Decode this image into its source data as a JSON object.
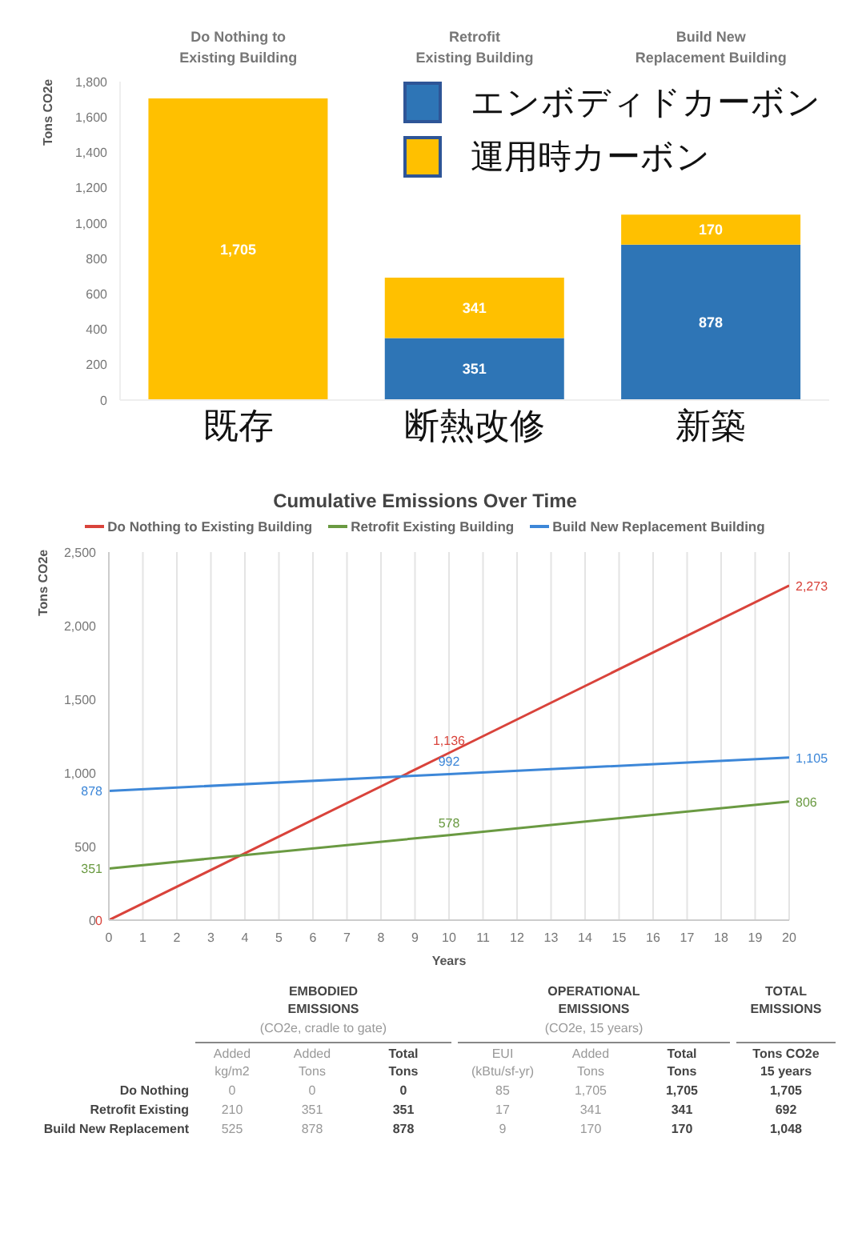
{
  "chart_data": [
    {
      "type": "bar",
      "stacked": true,
      "ylabel": "Tons CO2e",
      "categories": [
        "既存",
        "断熱改修",
        "新築"
      ],
      "series": [
        {
          "name": "エンボディドカーボン",
          "color": "#2e75b6",
          "values": [
            0,
            351,
            878
          ],
          "value_labels": [
            null,
            "351",
            "878"
          ]
        },
        {
          "name": "運用時カーボン",
          "color": "#ffc000",
          "values": [
            1705,
            341,
            170
          ],
          "value_labels": [
            "1,705",
            "341",
            "170"
          ]
        }
      ],
      "ylim": [
        0,
        1800
      ],
      "yticks": [
        0,
        200,
        400,
        600,
        800,
        {
          "value": 1000,
          "label": "1,000"
        },
        {
          "value": 1200,
          "label": "1,200"
        },
        {
          "value": 1400,
          "label": "1,400"
        },
        {
          "value": 1600,
          "label": "1,600"
        },
        {
          "value": 1800,
          "label": "1,800"
        }
      ],
      "legend": "top right",
      "grid": false,
      "annotations": [
        "Do Nothing to\nExisting Building",
        "Retrofit\nExisting Building",
        "Build New\nReplacement Building"
      ]
    },
    {
      "type": "line",
      "title": "Cumulative Emissions Over Time",
      "xlabel": "Years",
      "ylabel": "Tons CO2e",
      "x": [
        0,
        10,
        20
      ],
      "series": [
        {
          "name": "Do Nothing to Existing Building",
          "color": "#d9433b",
          "values": [
            0,
            1136,
            2273
          ],
          "value_labels": [
            "0",
            "1,136",
            "2,273"
          ]
        },
        {
          "name": "Retrofit Existing Building",
          "color": "#6a9a42",
          "values": [
            351,
            578,
            806
          ],
          "value_labels": [
            "351",
            "578",
            "806"
          ]
        },
        {
          "name": "Build New Replacement Building",
          "color": "#3d87d8",
          "values": [
            878,
            992,
            1105
          ],
          "value_labels": [
            "878",
            "992",
            "1,105"
          ]
        }
      ],
      "xlim": [
        0,
        20
      ],
      "xticks": [
        0,
        1,
        2,
        3,
        4,
        5,
        6,
        7,
        8,
        9,
        10,
        11,
        12,
        13,
        14,
        15,
        16,
        17,
        18,
        19,
        20
      ],
      "ylim": [
        0,
        2500
      ],
      "yticks": [
        0,
        500,
        {
          "value": 1000,
          "label": "1,000"
        },
        {
          "value": 1500,
          "label": "1,500"
        },
        {
          "value": 2000,
          "label": "2,000"
        },
        {
          "value": 2500,
          "label": "2,500"
        }
      ],
      "grid": "x",
      "legend": "top",
      "marker": "none",
      "line_style": "solid"
    },
    {
      "type": "other",
      "annotations": [
        "EMBODIED\nEMISSIONS",
        "(CO2e, cradle to gate)",
        "OPERATIONAL\nEMISSIONS",
        "(CO2e, 15 years)",
        "TOTAL\nEMISSIONS",
        "Added\nkg/m2",
        "Added\nTons",
        "Total\nTons",
        "EUI\n(kBtu/sf-yr)",
        "Added\nTons",
        "Total\nTons",
        "Tons CO2e\n15 years",
        "Do Nothing",
        "0",
        "0",
        "0",
        "85",
        "1,705",
        "1,705",
        "1,705",
        "Retrofit Existing",
        "210",
        "351",
        "351",
        "17",
        "341",
        "341",
        "692",
        "Build New Replacement",
        "525",
        "878",
        "878",
        "9",
        "170",
        "170",
        "1,048"
      ]
    }
  ]
}
